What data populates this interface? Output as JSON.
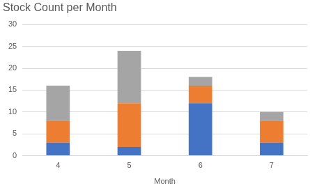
{
  "chart_data": {
    "type": "bar",
    "title": "Stock Count per Month",
    "x_label": "Month",
    "categories": [
      "4",
      "5",
      "6",
      "7"
    ],
    "series": [
      {
        "color": "#4472c4",
        "values": [
          3,
          2,
          12,
          3
        ]
      },
      {
        "color": "#ed7d31",
        "values": [
          5,
          10,
          4,
          5
        ]
      },
      {
        "color": "#a5a5a5",
        "values": [
          8,
          12,
          2,
          2
        ]
      }
    ],
    "stacked": true,
    "ylim": [
      0,
      30
    ],
    "yticks": [
      0,
      5,
      10,
      15,
      20,
      25,
      30
    ],
    "grid": true
  }
}
